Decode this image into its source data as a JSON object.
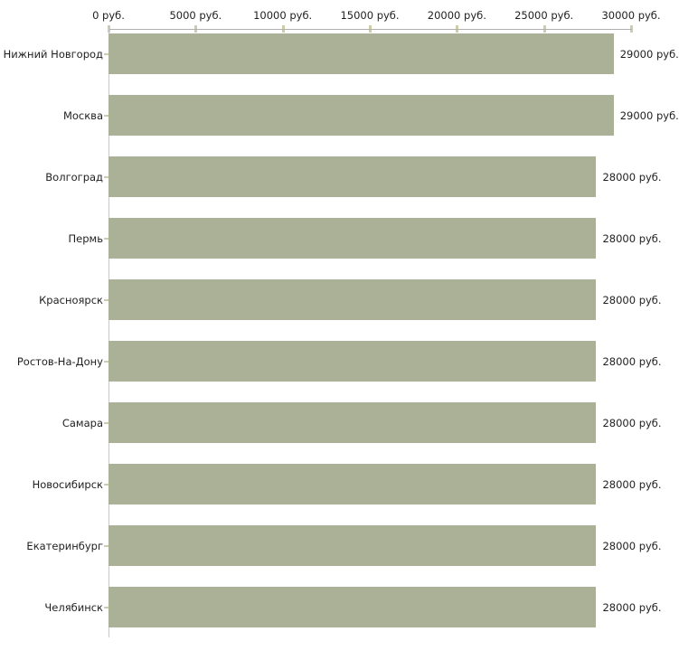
{
  "chart_data": {
    "type": "bar",
    "orientation": "horizontal",
    "title": "",
    "categories": [
      "Нижний Новгород",
      "Москва",
      "Волгоград",
      "Пермь",
      "Красноярск",
      "Ростов-На-Дону",
      "Самара",
      "Новосибирск",
      "Екатеринбург",
      "Челябинск"
    ],
    "values": [
      29000,
      29000,
      28000,
      28000,
      28000,
      28000,
      28000,
      28000,
      28000,
      28000
    ],
    "value_labels": [
      "29000 руб.",
      "29000 руб.",
      "28000 руб.",
      "28000 руб.",
      "28000 руб.",
      "28000 руб.",
      "28000 руб.",
      "28000 руб.",
      "28000 руб.",
      "28000 руб."
    ],
    "unit": "руб.",
    "x_axis": {
      "position": "top",
      "min": 0,
      "max": 30000,
      "tick_values": [
        0,
        5000,
        10000,
        15000,
        20000,
        25000,
        30000
      ],
      "tick_labels": [
        "0 руб.",
        "5000 руб.",
        "10000 руб.",
        "15000 руб.",
        "20000 руб.",
        "25000 руб.",
        "30000 руб."
      ]
    },
    "grid": false,
    "colors": {
      "bar": "#abb197",
      "axis_line": "#b0b0b0",
      "y_axis_line": "#c9c9c9",
      "tick_mark": "#cfccab",
      "text": "#1f1f1f",
      "background": "#ffffff"
    }
  }
}
